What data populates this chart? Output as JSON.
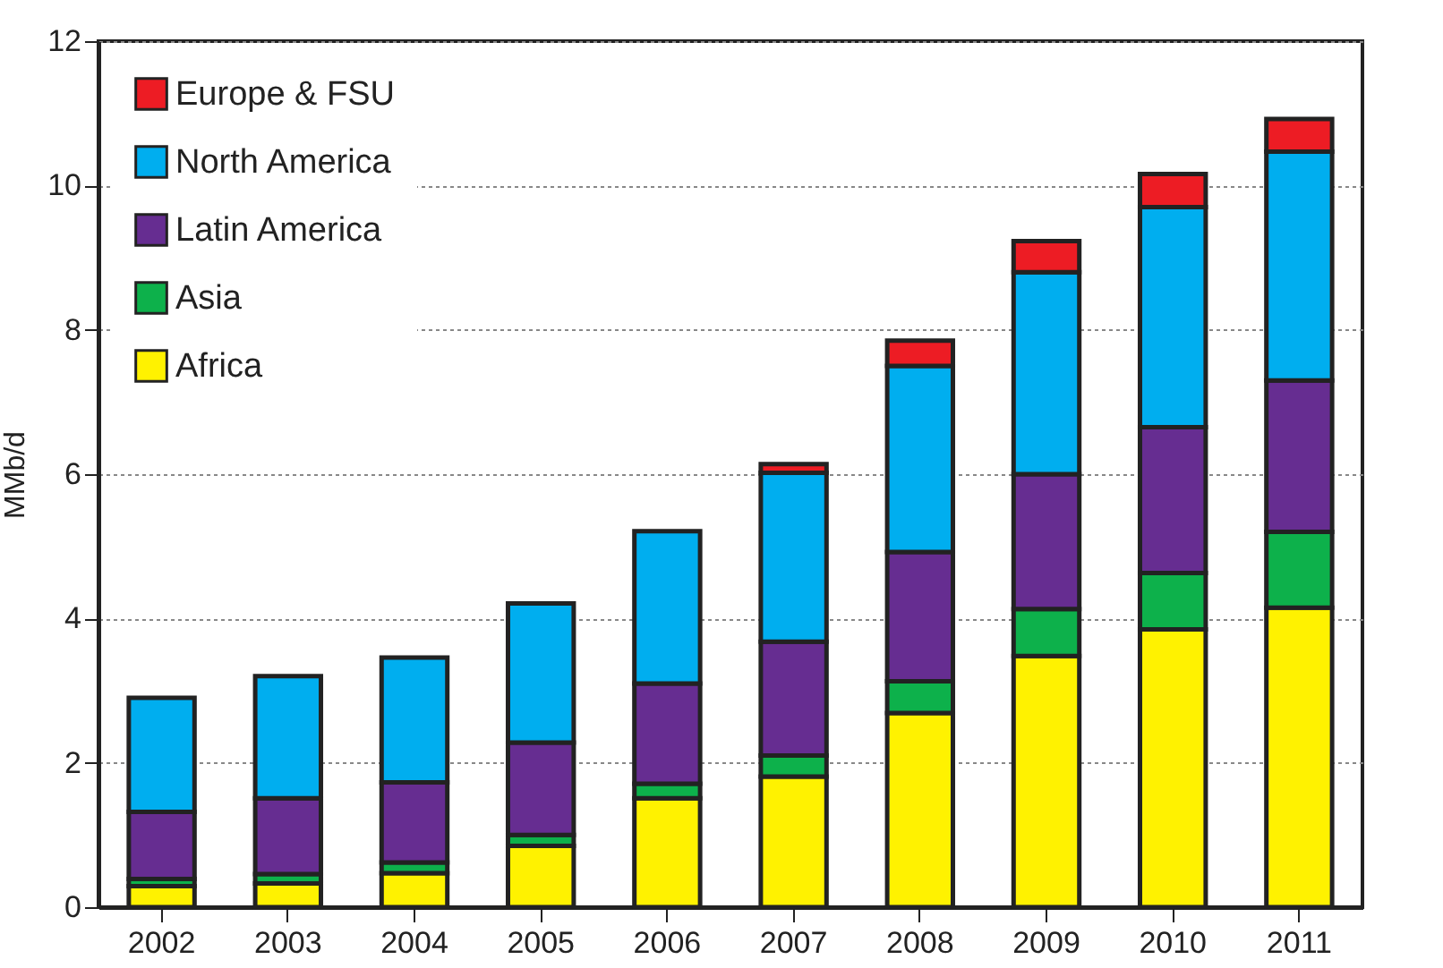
{
  "chart_data": {
    "type": "bar",
    "stacked": true,
    "ylabel": "MMb/d",
    "categories": [
      "2002",
      "2003",
      "2004",
      "2005",
      "2006",
      "2007",
      "2008",
      "2009",
      "2010",
      "2011"
    ],
    "series": [
      {
        "name": "Africa",
        "color": "#fff200",
        "values": [
          0.29,
          0.33,
          0.47,
          0.85,
          1.51,
          1.81,
          2.69,
          3.48,
          3.85,
          4.15
        ]
      },
      {
        "name": "Asia",
        "color": "#0db14b",
        "values": [
          0.1,
          0.13,
          0.15,
          0.15,
          0.2,
          0.29,
          0.44,
          0.65,
          0.78,
          1.05
        ]
      },
      {
        "name": "Latin America",
        "color": "#662d91",
        "values": [
          0.93,
          1.05,
          1.11,
          1.28,
          1.39,
          1.58,
          1.79,
          1.87,
          2.02,
          2.1
        ]
      },
      {
        "name": "North America",
        "color": "#00aeef",
        "values": [
          1.58,
          1.69,
          1.73,
          1.93,
          2.11,
          2.34,
          2.58,
          2.8,
          3.05,
          3.17
        ]
      },
      {
        "name": "Europe & FSU",
        "color": "#ed1c24",
        "values": [
          null,
          null,
          null,
          null,
          null,
          0.12,
          0.35,
          0.43,
          0.46,
          0.45
        ]
      }
    ],
    "ylim": [
      0,
      12
    ],
    "yticks": [
      0,
      2,
      4,
      6,
      8,
      10,
      12
    ],
    "grid": "y",
    "legend": "top left"
  }
}
